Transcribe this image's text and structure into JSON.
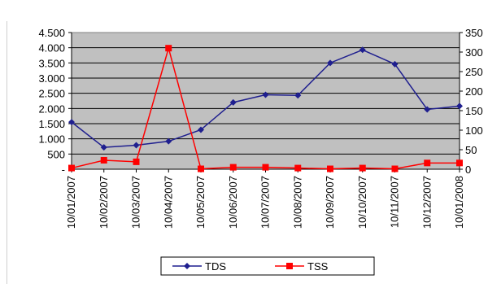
{
  "chart_data": {
    "type": "line",
    "categories": [
      "10/01/2007",
      "10/02/2007",
      "10/03/2007",
      "10/04/2007",
      "10/05/2007",
      "10/06/2007",
      "10/07/2007",
      "10/08/2007",
      "10/09/2007",
      "10/10/2007",
      "10/11/2007",
      "10/12/2007",
      "10/01/2008"
    ],
    "series": [
      {
        "name": "TDS",
        "axis": "left",
        "color": "#1f1f8f",
        "marker": "diamond",
        "values": [
          1550,
          720,
          790,
          920,
          1300,
          2200,
          2450,
          2430,
          3500,
          3930,
          3460,
          1970,
          2080
        ]
      },
      {
        "name": "TSS",
        "axis": "right",
        "color": "#ff0000",
        "marker": "square",
        "values": [
          3,
          23,
          19,
          310,
          1,
          5,
          5,
          3,
          1,
          3,
          1,
          16,
          16
        ]
      }
    ],
    "y_left": {
      "ylim": [
        0,
        4500
      ],
      "ticks": [
        0,
        500,
        1000,
        1500,
        2000,
        2500,
        3000,
        3500,
        4000,
        4500
      ],
      "tick_labels": [
        "-",
        "500",
        "1.000",
        "1.500",
        "2.000",
        "2.500",
        "3.000",
        "3.500",
        "4.000",
        "4.500"
      ]
    },
    "y_right": {
      "ylim": [
        0,
        350
      ],
      "ticks": [
        0,
        50,
        100,
        150,
        200,
        250,
        300,
        350
      ],
      "tick_labels": [
        "0",
        "50",
        "100",
        "150",
        "200",
        "250",
        "300",
        "350"
      ]
    },
    "plot_background": "#c0c0c0",
    "grid": true,
    "legend_placement": "bottom-center",
    "legend": [
      "TDS",
      "TSS"
    ]
  }
}
